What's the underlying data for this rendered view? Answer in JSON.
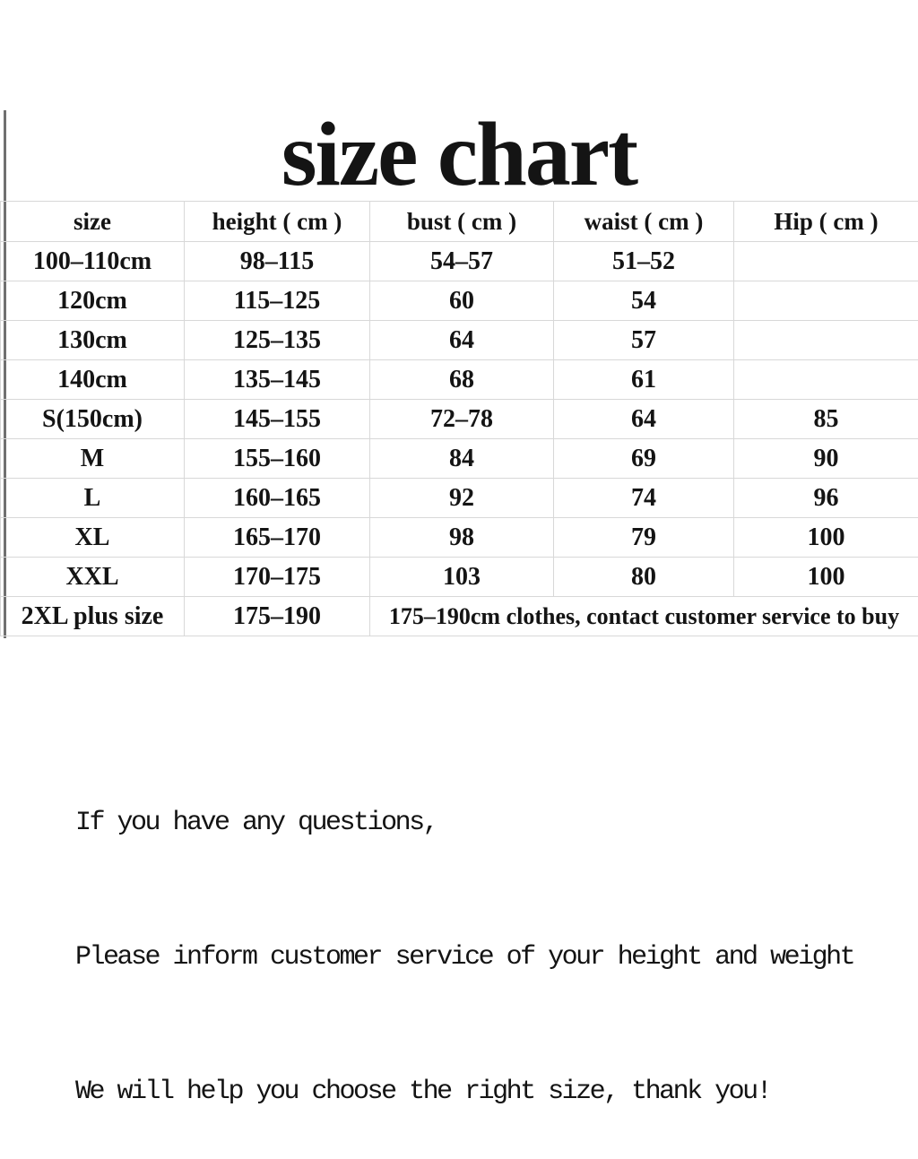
{
  "title": "size chart",
  "chart_data": {
    "type": "table",
    "title": "size chart",
    "columns": [
      "size",
      "height ( cm )",
      "bust ( cm )",
      "waist ( cm )",
      "Hip ( cm )"
    ],
    "rows": [
      [
        "100–110cm",
        "98–115",
        "54–57",
        "51–52",
        ""
      ],
      [
        "120cm",
        "115–125",
        "60",
        "54",
        ""
      ],
      [
        "130cm",
        "125–135",
        "64",
        "57",
        ""
      ],
      [
        "140cm",
        "135–145",
        "68",
        "61",
        ""
      ],
      [
        "S(150cm)",
        "145–155",
        "72–78",
        "64",
        "85"
      ],
      [
        "M",
        "155–160",
        "84",
        "69",
        "90"
      ],
      [
        "L",
        "160–165",
        "92",
        "74",
        "96"
      ],
      [
        "XL",
        "165–170",
        "98",
        "79",
        "100"
      ],
      [
        "XXL",
        "170–175",
        "103",
        "80",
        "100"
      ],
      [
        "2XL plus size",
        "175–190",
        "175–190cm clothes, contact customer service to buy"
      ]
    ],
    "merged_note_colspan": 3,
    "grid": true
  },
  "footer": {
    "lines": [
      "If you have any questions,",
      "Please inform customer service of your height and weight",
      "We will help you choose the right size, thank you!"
    ]
  },
  "colors": {
    "grid_line": "#d8d8d8",
    "left_rule": "#707070",
    "text": "#141414",
    "background": "#ffffff"
  }
}
